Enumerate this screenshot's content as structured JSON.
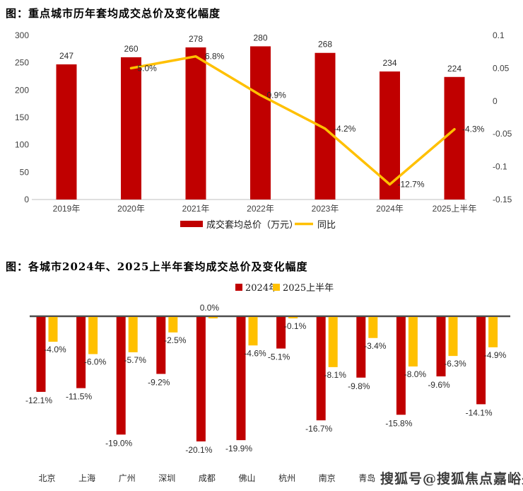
{
  "colors": {
    "bar_red": "#C00000",
    "line_yellow": "#FFC000",
    "axis_line": "#BFBFBF",
    "zero_line": "#4D4D4D",
    "tick_text": "#404040"
  },
  "watermark": {
    "text": "搜狐号@搜狐焦点嘉峪关站"
  },
  "chart_data": [
    {
      "type": "bar",
      "subtype": "bar-with-line-overlay",
      "title": "图：重点城市历年套均成交总价及变化幅度",
      "categories": [
        "2019年",
        "2020年",
        "2021年",
        "2022年",
        "2023年",
        "2024年",
        "2025上半年"
      ],
      "series": [
        {
          "name": "成交套均总价（万元）",
          "type": "bar",
          "color": "#C00000",
          "values": [
            247,
            260,
            278,
            280,
            268,
            234,
            224
          ],
          "labels": [
            "247",
            "260",
            "278",
            "280",
            "268",
            "234",
            "224"
          ]
        },
        {
          "name": "同比",
          "type": "line",
          "axis": "right",
          "color": "#FFC000",
          "values": [
            null,
            0.05,
            0.068,
            0.009,
            -0.042,
            -0.127,
            -0.043
          ],
          "labels": [
            "",
            "5.0%",
            "6.8%",
            "0.9%",
            "-4.2%",
            "-12.7%",
            "-4.3%"
          ]
        }
      ],
      "left_axis": {
        "min": 0,
        "max": 300,
        "ticks": [
          "300",
          "250",
          "200",
          "150",
          "100",
          "50",
          "0"
        ]
      },
      "right_axis": {
        "min": -0.15,
        "max": 0.1,
        "ticks": [
          "0.1",
          "0.05",
          "0",
          "-0.05",
          "-0.1",
          "-0.15"
        ]
      },
      "grid": false,
      "legend_position": "bottom"
    },
    {
      "type": "bar",
      "subtype": "grouped-negative-bars",
      "title": "图：各城市2024年、2025上半年套均成交总价及变化幅度",
      "categories": [
        "北京",
        "上海",
        "广州",
        "深圳",
        "成都",
        "佛山",
        "杭州",
        "南京",
        "青岛",
        "",
        "",
        ""
      ],
      "series": [
        {
          "name": "2024年",
          "color": "#C00000",
          "values": [
            -12.1,
            -11.5,
            -19.0,
            -9.2,
            -20.1,
            -19.9,
            -5.1,
            -16.7,
            -9.8,
            -15.8,
            -9.6,
            -14.1
          ],
          "labels": [
            "-12.1%",
            "-11.5%",
            "-19.0%",
            "-9.2%",
            "-20.1%",
            "-19.9%",
            "-5.1%",
            "-16.7%",
            "-9.8%",
            "-15.8%",
            "-9.6%",
            "-14.1%"
          ]
        },
        {
          "name": "2025上半年",
          "color": "#FFC000",
          "values": [
            -4.0,
            -6.0,
            -5.7,
            -2.5,
            0.0,
            -4.6,
            -0.1,
            -8.1,
            -3.4,
            -8.0,
            -6.3,
            -4.9
          ],
          "labels": [
            "-4.0%",
            "-6.0%",
            "-5.7%",
            "-2.5%",
            "0.0%",
            "-4.6%",
            "-0.1%",
            "-8.1%",
            "-3.4%",
            "-8.0%",
            "-6.3%",
            "-4.9%"
          ]
        }
      ],
      "grid": false,
      "legend_position": "top"
    }
  ]
}
